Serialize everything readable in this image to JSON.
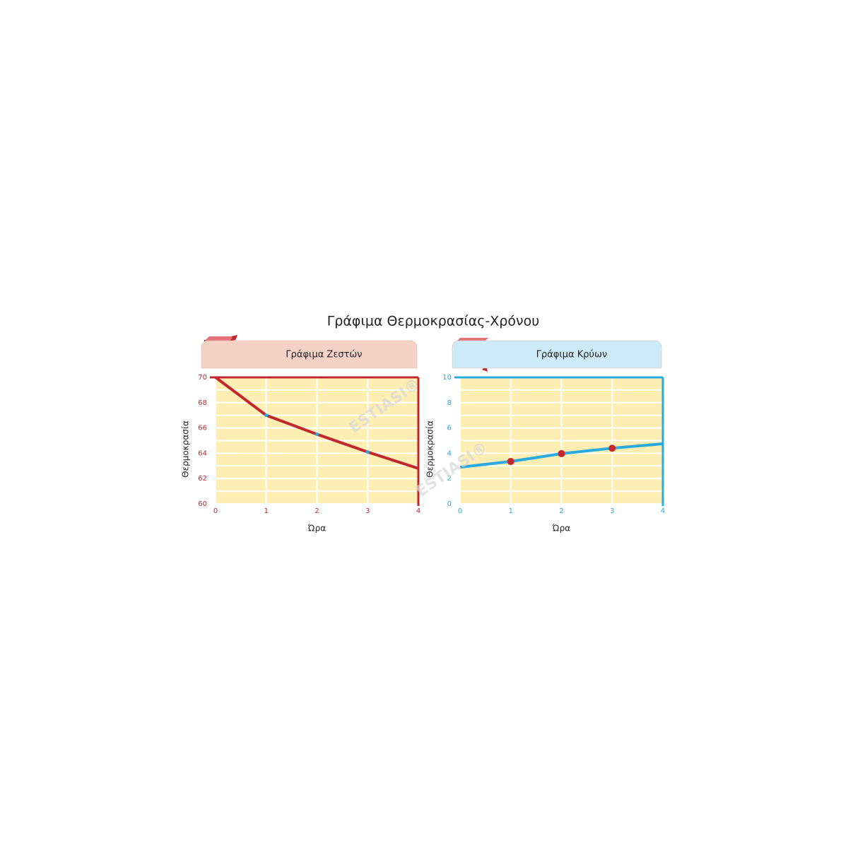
{
  "title": "Γράφιμα Θερμοκρασίας-Χρόνου",
  "watermark": "ESTIASI®",
  "chart_data": [
    {
      "type": "line",
      "title": "Γράφιμα Ζεστών",
      "x_label": "Ώρα",
      "y_label": "Θερμοκρασία",
      "x": [
        0,
        1,
        2,
        3,
        4
      ],
      "values": [
        70,
        67,
        65.5,
        64.1,
        62.8
      ],
      "color": "#c1272d",
      "marker_color": "#29abe2",
      "axis_color": "#c1272d",
      "header_color": "#f6d2c6",
      "xlim": [
        0,
        4
      ],
      "xticks": [
        0,
        1,
        2,
        3,
        4
      ],
      "ylim": [
        60,
        70
      ],
      "yticks": [
        60,
        62,
        64,
        66,
        68,
        70
      ],
      "grid": true
    },
    {
      "type": "line",
      "title": "Γράφιμα Κρύων",
      "x_label": "Ώρα",
      "y_label": "Θερμοκρασία",
      "x": [
        0,
        1,
        2,
        3,
        4
      ],
      "values": [
        2.9,
        3.35,
        3.97,
        4.4,
        4.75
      ],
      "color": "#29abe2",
      "marker_color": "#c1272d",
      "axis_color": "#29abe2",
      "header_color": "#cdeaf8",
      "xlim": [
        0,
        4
      ],
      "xticks": [
        0,
        1,
        2,
        3,
        4
      ],
      "ylim": [
        0,
        10
      ],
      "yticks": [
        0,
        2,
        4,
        6,
        8,
        10
      ],
      "grid": true
    }
  ]
}
